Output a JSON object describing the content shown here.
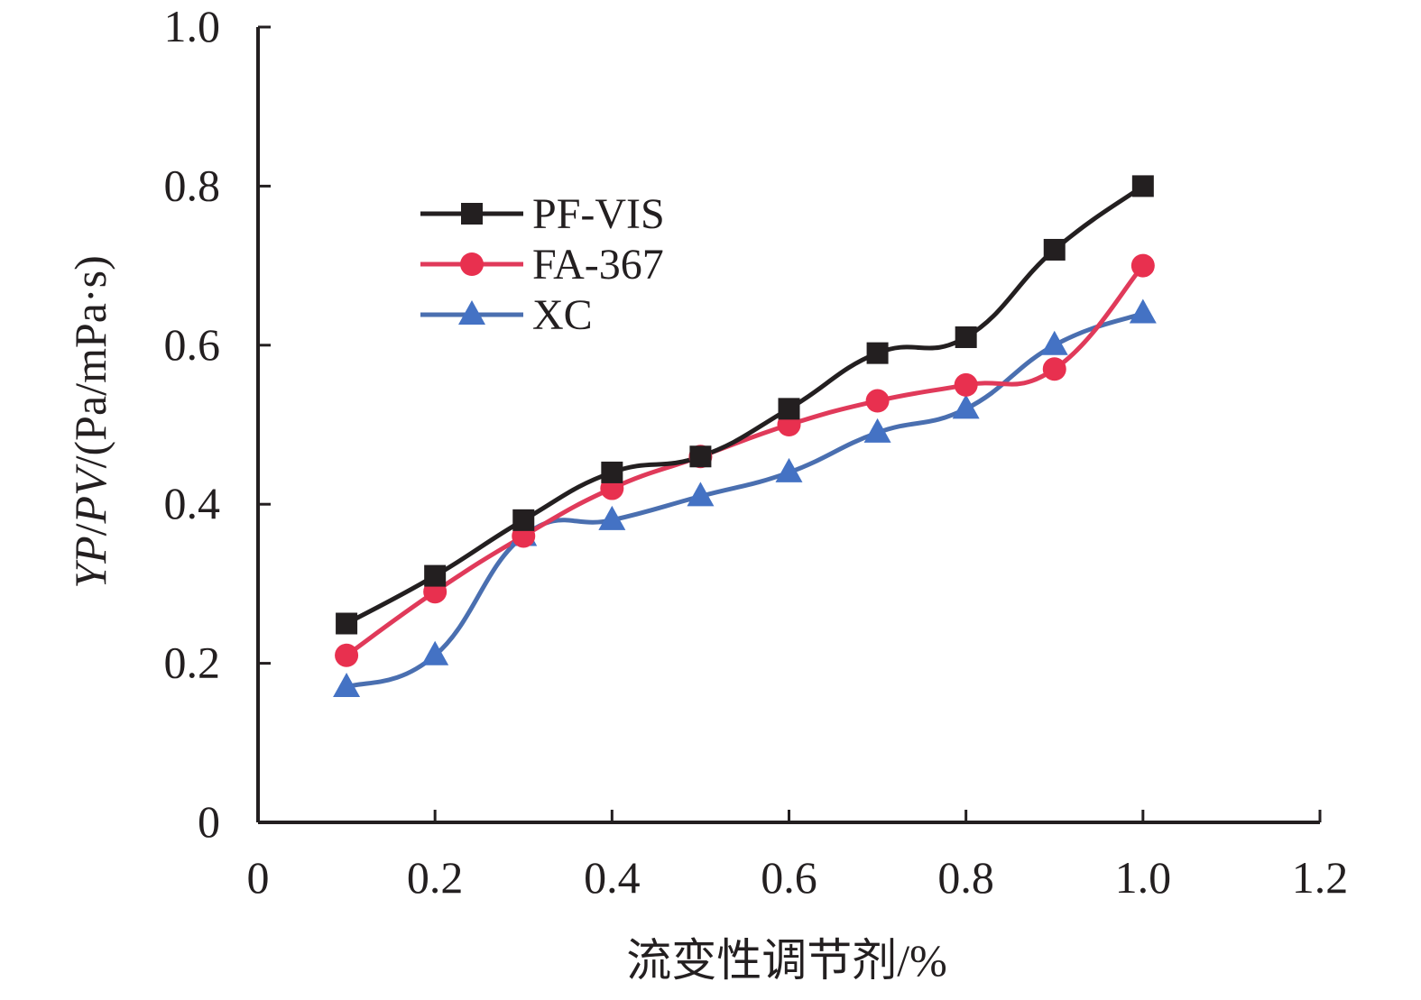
{
  "chart_data": {
    "type": "line",
    "title": "",
    "xlabel": "流变性调节剂/%",
    "ylabel": {
      "yp": "YP",
      "sep1": "/",
      "pv": "PV",
      "rest": "/(Pa/mPa·s)"
    },
    "xlim": [
      0,
      1.2
    ],
    "ylim": [
      0,
      1.0
    ],
    "x_ticks": [
      0,
      0.2,
      0.4,
      0.6,
      0.8,
      1.0,
      1.2
    ],
    "x_tick_labels": [
      "0",
      "0.2",
      "0.4",
      "0.6",
      "0.8",
      "1.0",
      "1.2"
    ],
    "y_ticks": [
      0,
      0.2,
      0.4,
      0.6,
      0.8,
      1.0
    ],
    "y_tick_labels": [
      "0",
      "0.2",
      "0.4",
      "0.6",
      "0.8",
      "1.0"
    ],
    "grid": false,
    "legend_position": "upper-left",
    "x": [
      0.1,
      0.2,
      0.3,
      0.4,
      0.5,
      0.6,
      0.7,
      0.8,
      0.9,
      1.0
    ],
    "series": [
      {
        "name": "PF-VIS",
        "marker": "square",
        "line_color": "#231f20",
        "marker_color": "#231f20",
        "values": [
          0.25,
          0.31,
          0.38,
          0.44,
          0.46,
          0.52,
          0.59,
          0.61,
          0.72,
          0.8
        ]
      },
      {
        "name": "FA-367",
        "marker": "circle",
        "line_color": "#e03a5a",
        "marker_color": "#e8304f",
        "values": [
          0.21,
          0.29,
          0.36,
          0.42,
          0.46,
          0.5,
          0.53,
          0.55,
          0.57,
          0.7
        ]
      },
      {
        "name": "XC",
        "marker": "triangle",
        "line_color": "#4a6fb0",
        "marker_color": "#4472c4",
        "values": [
          0.17,
          0.21,
          0.36,
          0.38,
          0.41,
          0.44,
          0.49,
          0.52,
          0.6,
          0.64
        ]
      }
    ]
  }
}
